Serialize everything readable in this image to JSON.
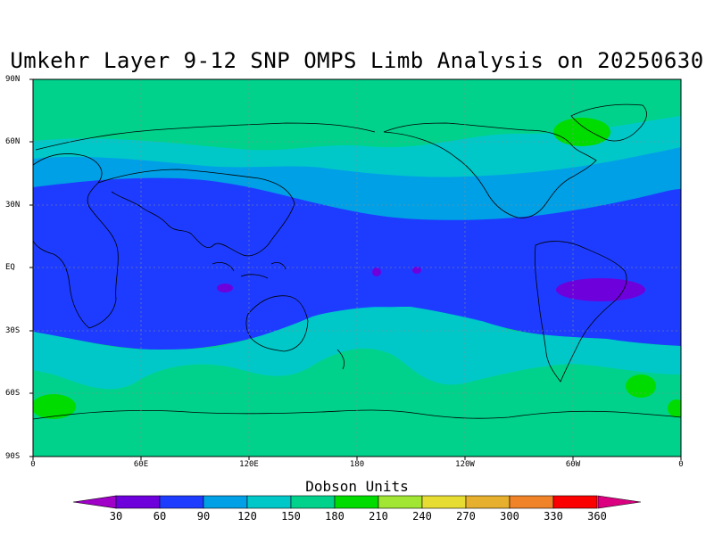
{
  "title": "Umkehr Layer 9-12 SNP OMPS Limb Analysis on 20250630",
  "lat_labels": [
    "90N",
    "60N",
    "30N",
    "EQ",
    "30S",
    "60S",
    "90S"
  ],
  "lon_labels": [
    "0",
    "60E",
    "120E",
    "180",
    "120W",
    "60W",
    "0"
  ],
  "colorbar": {
    "title": "Dobson Units",
    "ticks": [
      "30",
      "60",
      "90",
      "120",
      "150",
      "180",
      "210",
      "240",
      "270",
      "300",
      "330",
      "360"
    ],
    "colors": [
      "#a000c8",
      "#6e00dc",
      "#1e3cff",
      "#00a0e6",
      "#00c8c8",
      "#00d28c",
      "#00dc00",
      "#a0e632",
      "#e6dc32",
      "#e6af2d",
      "#f08228",
      "#fa0000",
      "#dc0080"
    ]
  },
  "map_colors": {
    "land_outline": "#000000",
    "band_180_210": "#00dc00",
    "band_150_180": "#00d28c",
    "band_120_150": "#00c8c8",
    "band_90_120": "#00a0e6",
    "band_60_90": "#1e3cff",
    "band_30_60": "#6e00dc"
  }
}
